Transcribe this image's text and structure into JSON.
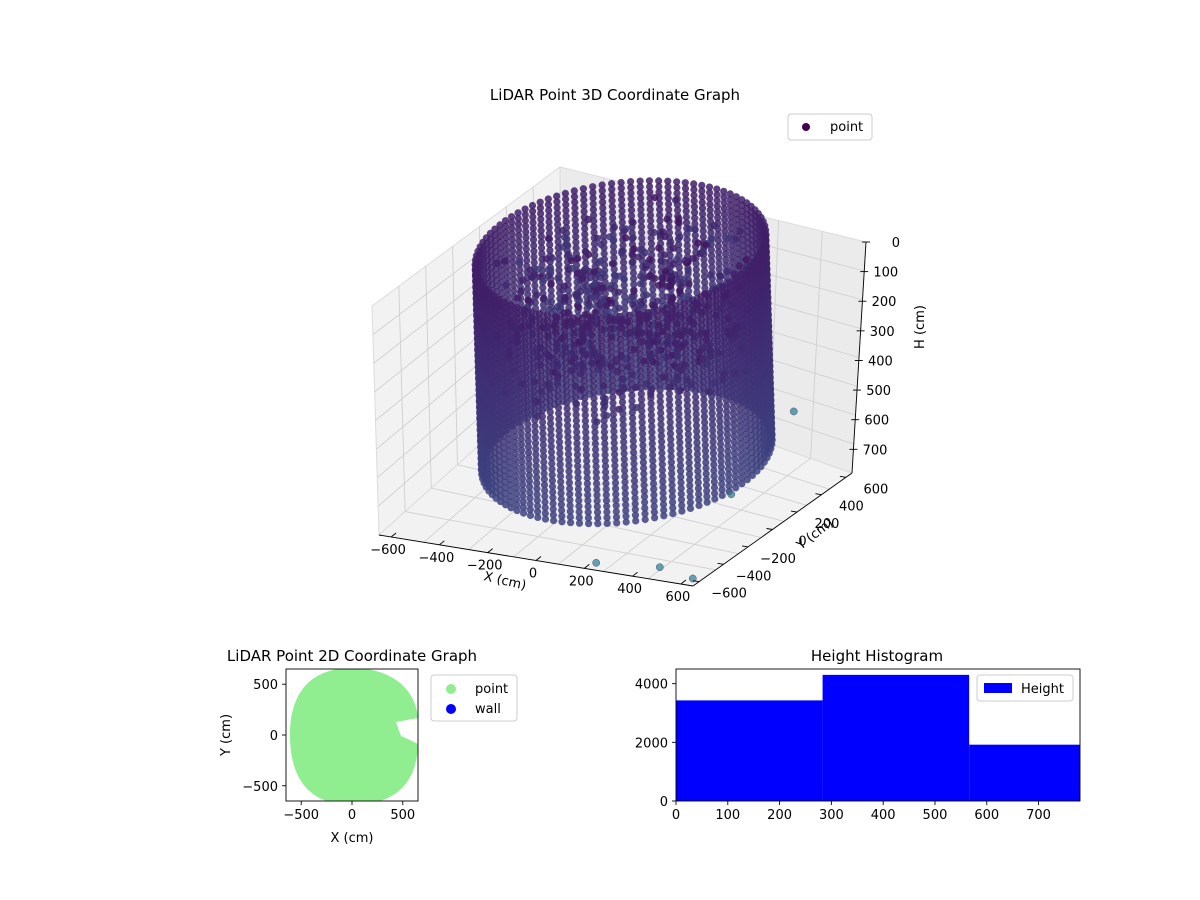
{
  "chart_data": [
    {
      "type": "scatter3d",
      "title": "LiDAR Point 3D Coordinate Graph",
      "xlabel": "X (cm)",
      "ylabel": "Y (cm)",
      "zlabel": "H (cm)",
      "xlim": [
        -650,
        650
      ],
      "ylim": [
        -650,
        650
      ],
      "zlim": [
        0,
        780
      ],
      "z_inverted": true,
      "x_ticks": [
        "−600",
        "−400",
        "−200",
        "0",
        "200",
        "400",
        "600"
      ],
      "y_ticks": [
        "−600",
        "−400",
        "−200",
        "0",
        "200",
        "400",
        "600"
      ],
      "z_ticks": [
        "0",
        "100",
        "200",
        "300",
        "400",
        "500",
        "600",
        "700"
      ],
      "legend": {
        "placement": "top-right",
        "entries": [
          {
            "label": "point",
            "color": "#440154"
          }
        ]
      },
      "grid": true,
      "shape": {
        "kind": "cylindrical wall",
        "radius": 520,
        "height_range": [
          0,
          700
        ]
      },
      "outliers": [
        {
          "x": 580,
          "y": 200,
          "h": 560
        },
        {
          "x": 520,
          "y": -150,
          "h": 700
        },
        {
          "x": 220,
          "y": -600,
          "h": 780
        },
        {
          "x": 460,
          "y": -560,
          "h": 780
        },
        {
          "x": 620,
          "y": -600,
          "h": 780
        }
      ],
      "colormap": [
        "#440154",
        "#3b528b",
        "#21918c"
      ]
    },
    {
      "type": "scatter",
      "title": "LiDAR Point 2D Coordinate Graph",
      "xlabel": "X (cm)",
      "ylabel": "Y (cm)",
      "xlim": [
        -650,
        650
      ],
      "ylim": [
        -650,
        650
      ],
      "x_ticks": [
        "−500",
        "0",
        "500"
      ],
      "y_ticks": [
        "−500",
        "0",
        "500"
      ],
      "legend": {
        "placement": "outside-right",
        "entries": [
          {
            "label": "point",
            "color": "#90ee90"
          },
          {
            "label": "wall",
            "color": "#0000ff"
          }
        ]
      },
      "grid": false
    },
    {
      "type": "bar",
      "title": "Height Histogram",
      "bins": [
        {
          "from": 0,
          "to": 283,
          "count": 3430
        },
        {
          "from": 283,
          "to": 566,
          "count": 4300
        },
        {
          "from": 566,
          "to": 780,
          "count": 1920
        }
      ],
      "xlim": [
        0,
        780
      ],
      "ylim": [
        0,
        4500
      ],
      "x_ticks": [
        "0",
        "100",
        "200",
        "300",
        "400",
        "500",
        "600",
        "700"
      ],
      "y_ticks": [
        "0",
        "2000",
        "4000"
      ],
      "bar_color": "#0000ff",
      "legend": {
        "placement": "top-right",
        "entries": [
          {
            "label": "Height",
            "color": "#0000ff"
          }
        ]
      },
      "grid": false
    }
  ]
}
